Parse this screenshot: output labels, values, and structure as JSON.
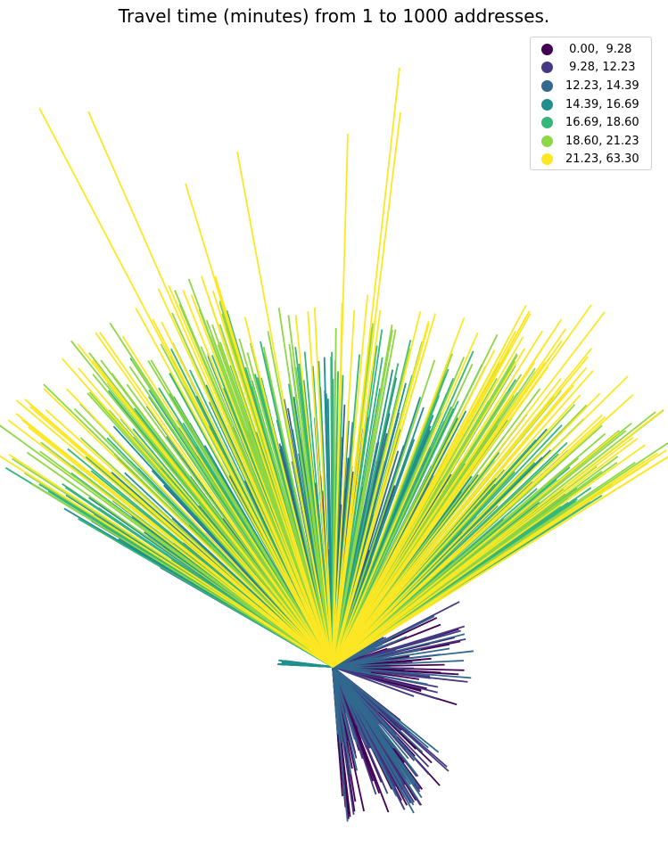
{
  "chart_data": {
    "type": "line",
    "title": "Travel time (minutes) from 1 to 1000 addresses.",
    "xlabel": "",
    "ylabel": "",
    "axes": "off",
    "grid": false,
    "legend_position": "top-right",
    "origin_count": 1,
    "destination_count": 1000,
    "legend": [
      {
        "label": " 0.00,  9.28",
        "color": "#440154"
      },
      {
        "label": " 9.28, 12.23",
        "color": "#443a83"
      },
      {
        "label": "12.23, 14.39",
        "color": "#31688e"
      },
      {
        "label": "14.39, 16.69",
        "color": "#21908d"
      },
      {
        "label": "16.69, 18.60",
        "color": "#35b779"
      },
      {
        "label": "18.60, 21.23",
        "color": "#8fd744"
      },
      {
        "label": "21.23, 63.30",
        "color": "#fde725"
      }
    ]
  }
}
